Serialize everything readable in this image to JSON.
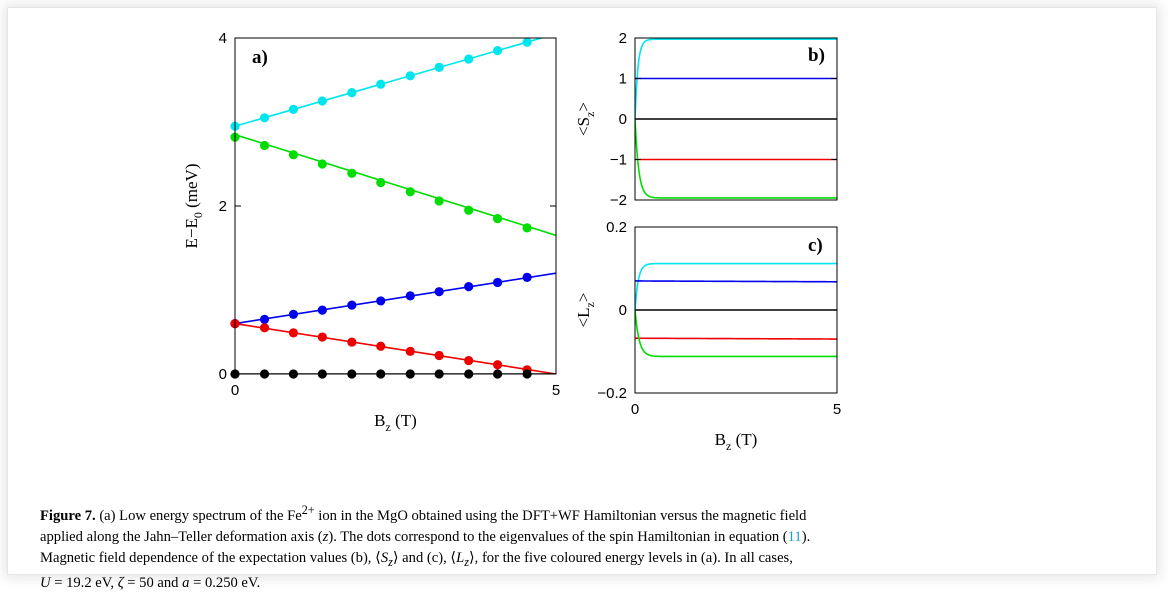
{
  "chart_data": [
    {
      "type": "line",
      "panel": "a)",
      "xlabel_main": "B",
      "xlabel_sub": "z",
      "xlabel_unit": " (T)",
      "ylabel_main": "E−E",
      "ylabel_sub": "0",
      "ylabel_unit": " (meV)",
      "xlim": [
        0,
        5
      ],
      "ylim": [
        0,
        4
      ],
      "xticks": [
        "0",
        "5"
      ],
      "yticks": [
        "0",
        "2",
        "4"
      ],
      "grid": false,
      "legend": "none",
      "series": [
        {
          "color": "#00e5ee",
          "line": [
            [
              0,
              2.95
            ],
            [
              5,
              4.05
            ]
          ],
          "dots_x": [
            0,
            0.46,
            0.91,
            1.36,
            1.82,
            2.27,
            2.73,
            3.18,
            3.64,
            4.09,
            4.55
          ],
          "dots_y": [
            2.95,
            3.05,
            3.15,
            3.25,
            3.35,
            3.45,
            3.55,
            3.65,
            3.75,
            3.85,
            3.95
          ]
        },
        {
          "color": "#00dd00",
          "line": [
            [
              0,
              2.85
            ],
            [
              5,
              1.65
            ]
          ],
          "dots_x": [
            0,
            0.46,
            0.91,
            1.36,
            1.82,
            2.27,
            2.73,
            3.18,
            3.64,
            4.09,
            4.55
          ],
          "dots_y": [
            2.82,
            2.72,
            2.61,
            2.5,
            2.39,
            2.28,
            2.17,
            2.06,
            1.95,
            1.85,
            1.74
          ]
        },
        {
          "color": "#0000ee",
          "line": [
            [
              0,
              0.6
            ],
            [
              5,
              1.2
            ]
          ],
          "dots_x": [
            0,
            0.46,
            0.91,
            1.36,
            1.82,
            2.27,
            2.73,
            3.18,
            3.64,
            4.09,
            4.55
          ],
          "dots_y": [
            0.6,
            0.65,
            0.71,
            0.76,
            0.82,
            0.87,
            0.93,
            0.98,
            1.04,
            1.09,
            1.15
          ]
        },
        {
          "color": "#ee0000",
          "line": [
            [
              0,
              0.6
            ],
            [
              5,
              0.0
            ]
          ],
          "dots_x": [
            0,
            0.46,
            0.91,
            1.36,
            1.82,
            2.27,
            2.73,
            3.18,
            3.64,
            4.09,
            4.55
          ],
          "dots_y": [
            0.6,
            0.55,
            0.49,
            0.44,
            0.38,
            0.33,
            0.27,
            0.22,
            0.16,
            0.11,
            0.05
          ]
        },
        {
          "color": "#000000",
          "line": [
            [
              0,
              0.0
            ],
            [
              5,
              0.0
            ]
          ],
          "dots_x": [
            0,
            0.46,
            0.91,
            1.36,
            1.82,
            2.27,
            2.73,
            3.18,
            3.64,
            4.09,
            4.55
          ],
          "dots_y": [
            0,
            0,
            0,
            0,
            0,
            0,
            0,
            0,
            0,
            0,
            0
          ]
        }
      ]
    },
    {
      "type": "line",
      "panel": "b)",
      "ylabel_main": "<S",
      "ylabel_sub": "z",
      "ylabel_unit": ">",
      "xlim": [
        0,
        5
      ],
      "ylim": [
        -2,
        2
      ],
      "yticks": [
        "−2",
        "−1",
        "0",
        "1",
        "2"
      ],
      "grid": false,
      "legend": "none",
      "series": [
        {
          "color": "#00e5ee",
          "kind": "saturating",
          "start": 0,
          "end": 1.97,
          "scale": 0.07
        },
        {
          "color": "#0000ee",
          "kind": "flat",
          "start": 1,
          "end": 1
        },
        {
          "color": "#000000",
          "kind": "flat",
          "start": 0,
          "end": 0
        },
        {
          "color": "#ee0000",
          "kind": "flat",
          "start": -1,
          "end": -1
        },
        {
          "color": "#00dd00",
          "kind": "saturating",
          "start": 0,
          "end": -1.95,
          "scale": 0.09
        }
      ]
    },
    {
      "type": "line",
      "panel": "c)",
      "xlabel_main": "B",
      "xlabel_sub": "z",
      "xlabel_unit": " (T)",
      "ylabel_main": "<L",
      "ylabel_sub": "z",
      "ylabel_unit": ">",
      "xlim": [
        0,
        5
      ],
      "ylim": [
        -0.2,
        0.2
      ],
      "xticks": [
        "0",
        "5"
      ],
      "yticks": [
        "−0.2",
        "0",
        "0.2"
      ],
      "grid": false,
      "legend": "none",
      "series": [
        {
          "color": "#00e5ee",
          "kind": "saturating",
          "start": 0,
          "end": 0.112,
          "scale": 0.08
        },
        {
          "color": "#0000ee",
          "kind": "flat",
          "start": 0.07,
          "end": 0.068
        },
        {
          "color": "#000000",
          "kind": "flat",
          "start": 0,
          "end": 0
        },
        {
          "color": "#ee0000",
          "kind": "flat",
          "start": -0.068,
          "end": -0.07
        },
        {
          "color": "#00dd00",
          "kind": "saturating",
          "start": 0,
          "end": -0.112,
          "scale": 0.1
        }
      ]
    }
  ],
  "caption": {
    "label": "Figure 7.",
    "line1_a": " (a) Low energy spectrum of the Fe",
    "line1_sup": "2+",
    "line1_b": " ion in the MgO obtained using the DFT+WF Hamiltonian versus the magnetic field",
    "line2_a": "applied along the Jahn–Teller deformation axis (",
    "line2_z": "z",
    "line2_b": "). The dots correspond to the eigenvalues of the spin Hamiltonian in equation (",
    "line2_ref": "11",
    "line2_c": ").",
    "line3_a": "Magnetic field dependence of the expectation values (b), ⟨",
    "line3_S": "S",
    "line3_Sz": "z",
    "line3_b": "⟩ and (c), ⟨",
    "line3_L": "L",
    "line3_Lz": "z",
    "line3_c": "⟩, for the five coloured energy levels in (a). In all cases,",
    "line4_U": "U",
    "line4_a": " = 19.2 eV, ",
    "line4_zeta": "ζ",
    "line4_b": " = 50 and ",
    "line4_av": "a",
    "line4_c": " = 0.250 eV."
  }
}
